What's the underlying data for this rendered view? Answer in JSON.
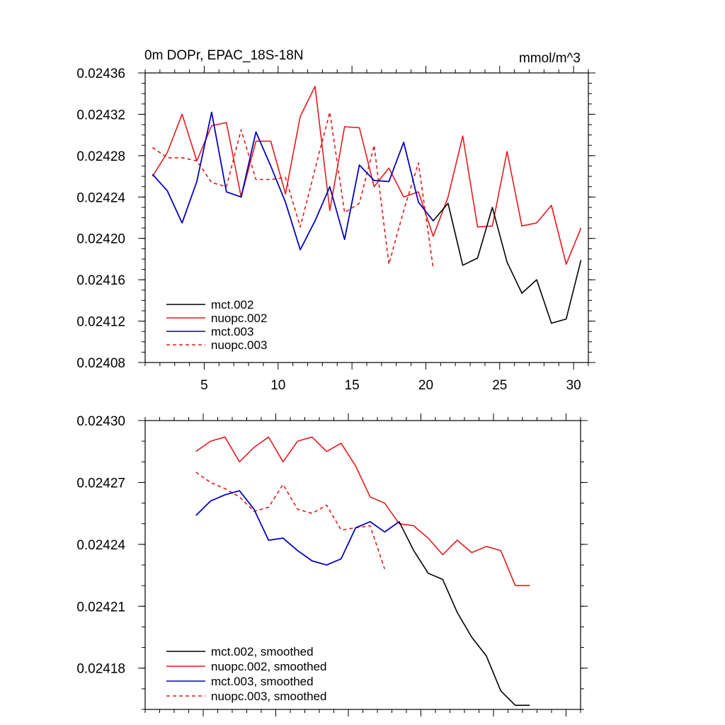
{
  "colors": {
    "black": "#000000",
    "red": "#e41a1c",
    "blue": "#0000cc"
  },
  "chart_data": [
    {
      "type": "line",
      "title_left": "0m DOPr, EPAC_18S-18N",
      "title_right": "mmol/m^3",
      "xlim": [
        1,
        31
      ],
      "ylim": [
        0.02408,
        0.02436
      ],
      "xticks": [
        5,
        10,
        15,
        20,
        25,
        30
      ],
      "xtick_labels": [
        "5",
        "10",
        "15",
        "20",
        "25",
        "30"
      ],
      "yticks": [
        0.02408,
        0.02412,
        0.02416,
        0.0242,
        0.02424,
        0.02428,
        0.02432,
        0.02436
      ],
      "ytick_labels": [
        "0.02408",
        "0.02412",
        "0.02416",
        "0.02420",
        "0.02424",
        "0.02428",
        "0.02432",
        "0.02436"
      ],
      "legend_position": "bottom-left",
      "series": [
        {
          "name": "mct.002",
          "color": "black",
          "dash": "solid",
          "x": [
            1.5,
            2.5,
            3.5,
            4.5,
            5.5,
            6.5,
            7.5,
            8.5,
            9.5,
            10.5,
            11.5,
            12.5,
            13.5,
            14.5,
            15.5,
            16.5,
            17.5,
            18.5,
            19.5,
            20.5,
            21.5,
            22.5,
            23.5,
            24.5,
            25.5,
            26.5,
            27.5,
            28.5,
            29.5,
            30.5
          ],
          "values": [
            0.024262,
            0.024246,
            0.024215,
            0.024255,
            0.024322,
            0.024245,
            0.02424,
            0.024303,
            0.02427,
            0.024235,
            0.024189,
            0.024217,
            0.02425,
            0.024199,
            0.024271,
            0.024256,
            0.024255,
            0.024293,
            0.024235,
            0.024217,
            0.024234,
            0.024174,
            0.024181,
            0.02423,
            0.024177,
            0.024147,
            0.02416,
            0.024118,
            0.024122,
            0.024179
          ]
        },
        {
          "name": "nuopc.002",
          "color": "red",
          "dash": "solid",
          "x": [
            1.5,
            2.5,
            3.5,
            4.5,
            5.5,
            6.5,
            7.5,
            8.5,
            9.5,
            10.5,
            11.5,
            12.5,
            13.5,
            14.5,
            15.5,
            16.5,
            17.5,
            18.5,
            19.5,
            20.5,
            21.5,
            22.5,
            23.5,
            24.5,
            25.5,
            26.5,
            27.5,
            28.5,
            29.5,
            30.5
          ],
          "values": [
            0.02426,
            0.024283,
            0.02432,
            0.024275,
            0.024309,
            0.024312,
            0.02424,
            0.024294,
            0.024294,
            0.024243,
            0.024318,
            0.024347,
            0.024227,
            0.024308,
            0.024307,
            0.02425,
            0.024268,
            0.02424,
            0.024245,
            0.024202,
            0.02424,
            0.024299,
            0.024211,
            0.024212,
            0.024284,
            0.024212,
            0.024215,
            0.024232,
            0.024175,
            0.02421
          ]
        },
        {
          "name": "mct.003",
          "color": "blue",
          "dash": "solid",
          "x": [
            1.5,
            2.5,
            3.5,
            4.5,
            5.5,
            6.5,
            7.5,
            8.5,
            9.5,
            10.5,
            11.5,
            12.5,
            13.5,
            14.5,
            15.5,
            16.5,
            17.5,
            18.5,
            19.5,
            20.5
          ],
          "values": [
            0.024262,
            0.024246,
            0.024215,
            0.024255,
            0.024322,
            0.024245,
            0.02424,
            0.024303,
            0.02427,
            0.024235,
            0.024189,
            0.024217,
            0.02425,
            0.024199,
            0.024271,
            0.024256,
            0.024255,
            0.024293,
            0.024235,
            0.024217
          ]
        },
        {
          "name": "nuopc.003",
          "color": "red",
          "dash": "dashed",
          "x": [
            1.5,
            2.5,
            3.5,
            4.5,
            5.5,
            6.5,
            7.5,
            8.5,
            9.5,
            10.5,
            11.5,
            12.5,
            13.5,
            14.5,
            15.5,
            16.5,
            17.5,
            18.5,
            19.5,
            20.5
          ],
          "values": [
            0.024288,
            0.024278,
            0.024278,
            0.024275,
            0.024254,
            0.02425,
            0.024305,
            0.024257,
            0.024257,
            0.024259,
            0.024211,
            0.024267,
            0.024322,
            0.024225,
            0.024234,
            0.02429,
            0.024175,
            0.024227,
            0.024273,
            0.024171
          ]
        }
      ]
    },
    {
      "type": "line",
      "title_left": "",
      "title_right": "",
      "xlim": [
        1,
        31
      ],
      "ylim": [
        0.02416,
        0.0243
      ],
      "xticks": [
        5,
        10,
        15,
        20,
        25,
        30
      ],
      "xtick_labels": [],
      "yticks": [
        0.02418,
        0.02421,
        0.02424,
        0.02427,
        0.0243
      ],
      "ytick_labels": [
        "0.02418",
        "0.02421",
        "0.02424",
        "0.02427",
        "0.02430"
      ],
      "legend_position": "bottom-left",
      "series": [
        {
          "name": "mct.002, smoothed",
          "color": "black",
          "dash": "solid",
          "x": [
            4.5,
            5.5,
            6.5,
            7.5,
            8.5,
            9.5,
            10.5,
            11.5,
            12.5,
            13.5,
            14.5,
            15.5,
            16.5,
            17.5,
            18.5,
            19.5,
            20.5,
            21.5,
            22.5,
            23.5,
            24.5,
            25.5,
            26.5,
            27.5
          ],
          "values": [
            0.024254,
            0.024261,
            0.024264,
            0.024266,
            0.024257,
            0.024242,
            0.024243,
            0.024237,
            0.024232,
            0.02423,
            0.024233,
            0.024248,
            0.024251,
            0.024246,
            0.024251,
            0.024237,
            0.024226,
            0.024223,
            0.024207,
            0.024195,
            0.024186,
            0.024169,
            0.024162,
            0.024162
          ]
        },
        {
          "name": "nuopc.002, smoothed",
          "color": "red",
          "dash": "solid",
          "x": [
            4.5,
            5.5,
            6.5,
            7.5,
            8.5,
            9.5,
            10.5,
            11.5,
            12.5,
            13.5,
            14.5,
            15.5,
            16.5,
            17.5,
            18.5,
            19.5,
            20.5,
            21.5,
            22.5,
            23.5,
            24.5,
            25.5,
            26.5,
            27.5
          ],
          "values": [
            0.024285,
            0.02429,
            0.024292,
            0.02428,
            0.024287,
            0.024292,
            0.02428,
            0.02429,
            0.024292,
            0.024285,
            0.024289,
            0.024278,
            0.024263,
            0.02426,
            0.02425,
            0.024249,
            0.024243,
            0.024235,
            0.024242,
            0.024236,
            0.024239,
            0.024237,
            0.02422,
            0.02422
          ]
        },
        {
          "name": "mct.003, smoothed",
          "color": "blue",
          "dash": "solid",
          "x": [
            4.5,
            5.5,
            6.5,
            7.5,
            8.5,
            9.5,
            10.5,
            11.5,
            12.5,
            13.5,
            14.5,
            15.5,
            16.5,
            17.5,
            18.5
          ],
          "values": [
            0.024254,
            0.024261,
            0.024264,
            0.024266,
            0.024257,
            0.024242,
            0.024243,
            0.024237,
            0.024232,
            0.02423,
            0.024233,
            0.024248,
            0.024251,
            0.024246,
            0.024251
          ]
        },
        {
          "name": "nuopc.003, smoothed",
          "color": "red",
          "dash": "dashed",
          "x": [
            4.5,
            5.5,
            6.5,
            7.5,
            8.5,
            9.5,
            10.5,
            11.5,
            12.5,
            13.5,
            14.5,
            15.5,
            16.5,
            17.5
          ],
          "values": [
            0.024275,
            0.02427,
            0.024267,
            0.024263,
            0.024256,
            0.024258,
            0.024269,
            0.024257,
            0.024255,
            0.024259,
            0.024247,
            0.024248,
            0.024249,
            0.024228
          ]
        }
      ]
    }
  ]
}
